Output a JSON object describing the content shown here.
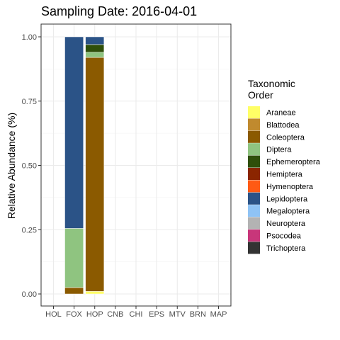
{
  "chart_data": {
    "type": "bar",
    "stacked": true,
    "title": "Sampling Date: 2016-04-01",
    "xlabel": "",
    "ylabel": "Relative Abundance (%)",
    "ylim": [
      0,
      1
    ],
    "yticks": [
      "0.00",
      "0.25",
      "0.50",
      "0.75",
      "1.00"
    ],
    "ytick_values": [
      0,
      0.25,
      0.5,
      0.75,
      1.0
    ],
    "categories": [
      "HOL",
      "FOX",
      "HOP",
      "CNB",
      "CHI",
      "EPS",
      "MTV",
      "BRN",
      "MAP"
    ],
    "grid": true,
    "legend_position": "right",
    "legend_title": [
      "Taxonomic",
      "Order"
    ],
    "series": [
      {
        "name": "Araneae",
        "color": "#FFFF66",
        "values": [
          0,
          0,
          0.01,
          0,
          0,
          0,
          0,
          0,
          0
        ]
      },
      {
        "name": "Blattodea",
        "color": "#C08A2E",
        "values": [
          0,
          0,
          0,
          0,
          0,
          0,
          0,
          0,
          0
        ]
      },
      {
        "name": "Coleoptera",
        "color": "#8B5A00",
        "values": [
          0,
          0.025,
          0.91,
          0,
          0,
          0,
          0,
          0,
          0
        ]
      },
      {
        "name": "Diptera",
        "color": "#8FC480",
        "values": [
          0,
          0.23,
          0.02,
          0,
          0,
          0,
          0,
          0,
          0
        ]
      },
      {
        "name": "Ephemeroptera",
        "color": "#2F4F0A",
        "values": [
          0,
          0,
          0.03,
          0,
          0,
          0,
          0,
          0,
          0
        ]
      },
      {
        "name": "Hemiptera",
        "color": "#8B2500",
        "values": [
          0,
          0,
          0,
          0,
          0,
          0,
          0,
          0,
          0
        ]
      },
      {
        "name": "Hymenoptera",
        "color": "#FF5A14",
        "values": [
          0,
          0,
          0,
          0,
          0,
          0,
          0,
          0,
          0
        ]
      },
      {
        "name": "Lepidoptera",
        "color": "#2B5387",
        "values": [
          0,
          0.745,
          0.03,
          0,
          0,
          0,
          0,
          0,
          0
        ]
      },
      {
        "name": "Megaloptera",
        "color": "#8FC3F5",
        "values": [
          0,
          0,
          0,
          0,
          0,
          0,
          0,
          0,
          0
        ]
      },
      {
        "name": "Neuroptera",
        "color": "#B3B3B3",
        "values": [
          0,
          0,
          0,
          0,
          0,
          0,
          0,
          0,
          0
        ]
      },
      {
        "name": "Psocodea",
        "color": "#C8367A",
        "values": [
          0,
          0,
          0,
          0,
          0,
          0,
          0,
          0,
          0
        ]
      },
      {
        "name": "Trichoptera",
        "color": "#333333",
        "values": [
          0,
          0,
          0,
          0,
          0,
          0,
          0,
          0,
          0
        ]
      }
    ]
  }
}
